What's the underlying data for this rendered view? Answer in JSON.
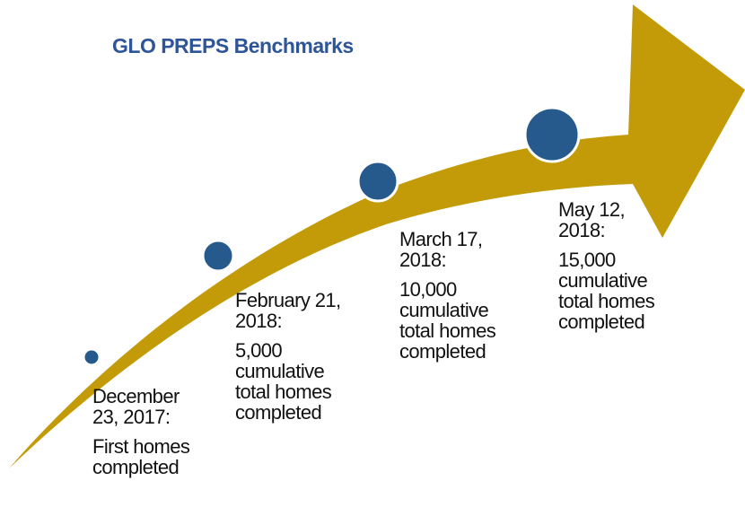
{
  "title": "GLO PREPS Benchmarks",
  "milestones": [
    {
      "date_lines": [
        "December",
        "23, 2017:"
      ],
      "description_lines": [
        "First homes",
        "completed"
      ]
    },
    {
      "date_lines": [
        "February 21,",
        "2018:"
      ],
      "description_lines": [
        "5,000",
        "cumulative",
        "total homes",
        "completed"
      ]
    },
    {
      "date_lines": [
        "March 17,",
        "2018:"
      ],
      "description_lines": [
        "10,000",
        "cumulative",
        "total homes",
        "completed"
      ]
    },
    {
      "date_lines": [
        "May 12,",
        "2018:"
      ],
      "description_lines": [
        "15,000",
        "cumulative",
        "total homes",
        "completed"
      ]
    }
  ]
}
